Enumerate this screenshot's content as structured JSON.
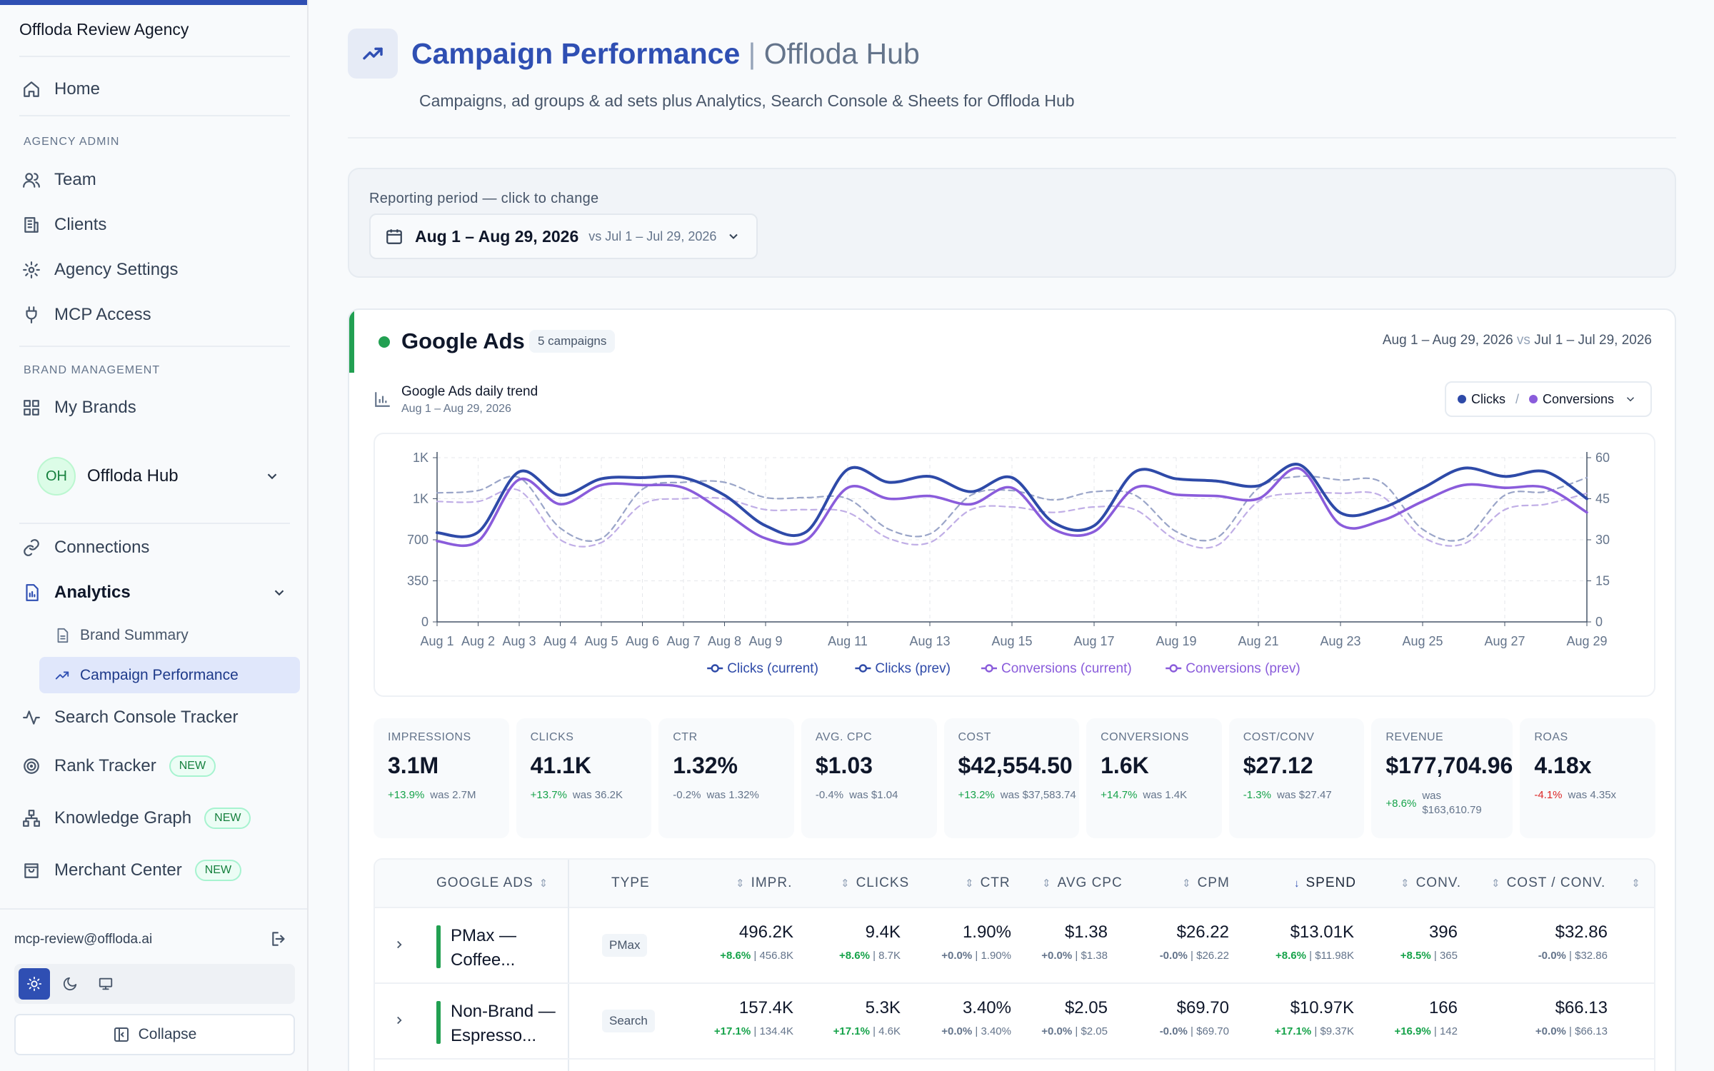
{
  "agency": "Offloda Review Agency",
  "nav": {
    "home": "Home",
    "agency_admin_label": "AGENCY ADMIN",
    "team": "Team",
    "clients": "Clients",
    "agency_settings": "Agency Settings",
    "mcp_access": "MCP Access",
    "brand_management_label": "BRAND MANAGEMENT",
    "my_brands": "My Brands",
    "brand_initials": "OH",
    "brand_name": "Offloda Hub",
    "connections": "Connections",
    "analytics": "Analytics",
    "brand_summary": "Brand Summary",
    "campaign_performance": "Campaign Performance",
    "search_console": "Search Console Tracker",
    "rank_tracker": "Rank Tracker",
    "knowledge_graph": "Knowledge Graph",
    "merchant_center": "Merchant Center",
    "new_badge": "NEW",
    "email": "mcp-review@offloda.ai",
    "collapse": "Collapse"
  },
  "header": {
    "title": "Campaign Performance",
    "separator": "|",
    "hub": "Offloda Hub",
    "subtitle": "Campaigns, ad groups & ad sets plus Analytics, Search Console & Sheets for Offloda Hub"
  },
  "period": {
    "label": "Reporting period — click to change",
    "current": "Aug 1 – Aug 29, 2026",
    "compare": "vs Jul 1 – Jul 29, 2026"
  },
  "google_ads": {
    "title": "Google Ads",
    "count": "5 campaigns",
    "range_current": "Aug 1 – Aug 29, 2026",
    "range_vs": "vs",
    "range_prev": "Jul 1 – Jul 29, 2026",
    "trend_title": "Google Ads daily trend",
    "trend_sub": "Aug 1 – Aug 29, 2026",
    "metric_a": "Clicks",
    "metric_sep": "/",
    "metric_b": "Conversions"
  },
  "colors": {
    "clicks": "#2e4aa8",
    "conversions": "#8a5cdb",
    "clicks_prev": "#9aa5c8",
    "conversions_prev": "#c0aee6",
    "accent": "#2f4fb3",
    "positive": "#16a34a",
    "negative": "#dc2626"
  },
  "chart_data": {
    "type": "line",
    "x": [
      "Aug 1",
      "Aug 2",
      "Aug 3",
      "Aug 4",
      "Aug 5",
      "Aug 6",
      "Aug 7",
      "Aug 8",
      "Aug 9",
      "Aug 10",
      "Aug 11",
      "Aug 12",
      "Aug 13",
      "Aug 14",
      "Aug 15",
      "Aug 16",
      "Aug 17",
      "Aug 18",
      "Aug 19",
      "Aug 20",
      "Aug 21",
      "Aug 22",
      "Aug 23",
      "Aug 24",
      "Aug 25",
      "Aug 26",
      "Aug 27",
      "Aug 28",
      "Aug 29"
    ],
    "x_tick_labels": [
      "Aug 1",
      "Aug 2",
      "Aug 3",
      "Aug 4",
      "Aug 5",
      "Aug 6",
      "Aug 7",
      "Aug 8",
      "Aug 9",
      "Aug 11",
      "Aug 13",
      "Aug 15",
      "Aug 17",
      "Aug 19",
      "Aug 21",
      "Aug 23",
      "Aug 25",
      "Aug 27",
      "Aug 29"
    ],
    "y_left_ticks": [
      "0",
      "350",
      "700",
      "1K",
      "1K"
    ],
    "y_left_tick_values": [
      0,
      350,
      700,
      1050,
      1400
    ],
    "y_right_ticks": [
      "0",
      "15",
      "30",
      "45",
      "60"
    ],
    "y_right_tick_values": [
      0,
      15,
      30,
      45,
      60
    ],
    "ylim_left": [
      0,
      1400
    ],
    "ylim_right": [
      0,
      60
    ],
    "grid": true,
    "legend_position": "bottom",
    "series": [
      {
        "name": "Clicks (current)",
        "axis": "left",
        "dashed": false,
        "values": [
          760,
          765,
          1280,
          1080,
          1220,
          1230,
          1230,
          1080,
          820,
          770,
          1300,
          1190,
          1240,
          1110,
          1230,
          850,
          820,
          1280,
          1220,
          1200,
          1160,
          1340,
          930,
          970,
          1140,
          1310,
          1240,
          1280,
          1050
        ]
      },
      {
        "name": "Clicks (prev)",
        "axis": "left",
        "dashed": true,
        "values": [
          1100,
          1120,
          1230,
          800,
          710,
          1130,
          1190,
          1190,
          1060,
          1060,
          1050,
          790,
          750,
          1080,
          1120,
          1040,
          1110,
          1080,
          770,
          720,
          1140,
          1240,
          1210,
          1190,
          790,
          710,
          1080,
          1110,
          1230
        ]
      },
      {
        "name": "Conversions (current)",
        "axis": "right",
        "dashed": false,
        "values": [
          29.5,
          29.5,
          52,
          43,
          50,
          50,
          49,
          40,
          30.5,
          30,
          49,
          45,
          46,
          43,
          49,
          34,
          33,
          49,
          46.5,
          46,
          45,
          56,
          35.5,
          37,
          44,
          50,
          49,
          49,
          40
        ]
      },
      {
        "name": "Conversions (prev)",
        "axis": "right",
        "dashed": true,
        "values": [
          44,
          44,
          48,
          30,
          29,
          43,
          45,
          45,
          41,
          41,
          40,
          30.5,
          29,
          41,
          42,
          40,
          42,
          41,
          30,
          28,
          44,
          47,
          47,
          46,
          31,
          28.5,
          41,
          43,
          47
        ]
      }
    ]
  },
  "kpis": [
    {
      "label": "IMPRESSIONS",
      "value": "3.1M",
      "delta": "+13.9%",
      "dir": "up",
      "was": "was 2.7M"
    },
    {
      "label": "CLICKS",
      "value": "41.1K",
      "delta": "+13.7%",
      "dir": "up",
      "was": "was 36.2K"
    },
    {
      "label": "CTR",
      "value": "1.32%",
      "delta": "-0.2%",
      "dir": "neutral",
      "was": "was 1.32%"
    },
    {
      "label": "AVG. CPC",
      "value": "$1.03",
      "delta": "-0.4%",
      "dir": "neutral",
      "was": "was $1.04"
    },
    {
      "label": "COST",
      "value": "$42,554.50",
      "delta": "+13.2%",
      "dir": "up",
      "was": "was $37,583.74"
    },
    {
      "label": "CONVERSIONS",
      "value": "1.6K",
      "delta": "+14.7%",
      "dir": "up",
      "was": "was 1.4K"
    },
    {
      "label": "COST/CONV",
      "value": "$27.12",
      "delta": "-1.3%",
      "dir": "up",
      "was": "was $27.47"
    },
    {
      "label": "REVENUE",
      "value": "$177,704.96",
      "delta": "+8.6%",
      "dir": "up",
      "was": "was $163,610.79"
    },
    {
      "label": "ROAS",
      "value": "4.18x",
      "delta": "-4.1%",
      "dir": "down",
      "was": "was 4.35x"
    }
  ],
  "table": {
    "headers": {
      "name": "GOOGLE ADS",
      "type": "TYPE",
      "impr": "IMPR.",
      "clicks": "CLICKS",
      "ctr": "CTR",
      "avg_cpc": "AVG CPC",
      "cpm": "CPM",
      "spend": "SPEND",
      "conv": "CONV.",
      "cost_conv": "COST / CONV."
    },
    "sort_icon": "⇕",
    "sort_active_icon": "↓",
    "rows": [
      {
        "name": "PMax — Coffee...",
        "type": "PMax",
        "impr": {
          "v": "496.2K",
          "d": "+8.6%",
          "dir": "up",
          "p": "456.8K"
        },
        "clicks": {
          "v": "9.4K",
          "d": "+8.6%",
          "dir": "up",
          "p": "8.7K"
        },
        "ctr": {
          "v": "1.90%",
          "d": "+0.0%",
          "dir": "neutral",
          "p": "1.90%"
        },
        "avg_cpc": {
          "v": "$1.38",
          "d": "+0.0%",
          "dir": "neutral",
          "p": "$1.38"
        },
        "cpm": {
          "v": "$26.22",
          "d": "-0.0%",
          "dir": "neutral",
          "p": "$26.22"
        },
        "spend": {
          "v": "$13.01K",
          "d": "+8.6%",
          "dir": "up",
          "p": "$11.98K"
        },
        "conv": {
          "v": "396",
          "d": "+8.5%",
          "dir": "up",
          "p": "365"
        },
        "cost_conv": {
          "v": "$32.86",
          "d": "-0.0%",
          "dir": "neutral",
          "p": "$32.86"
        }
      },
      {
        "name": "Non-Brand — Espresso...",
        "type": "Search",
        "impr": {
          "v": "157.4K",
          "d": "+17.1%",
          "dir": "up",
          "p": "134.4K"
        },
        "clicks": {
          "v": "5.3K",
          "d": "+17.1%",
          "dir": "up",
          "p": "4.6K"
        },
        "ctr": {
          "v": "3.40%",
          "d": "+0.0%",
          "dir": "neutral",
          "p": "3.40%"
        },
        "avg_cpc": {
          "v": "$2.05",
          "d": "+0.0%",
          "dir": "neutral",
          "p": "$2.05"
        },
        "cpm": {
          "v": "$69.70",
          "d": "-0.0%",
          "dir": "neutral",
          "p": "$69.70"
        },
        "spend": {
          "v": "$10.97K",
          "d": "+17.1%",
          "dir": "up",
          "p": "$9.37K"
        },
        "conv": {
          "v": "166",
          "d": "+16.9%",
          "dir": "up",
          "p": "142"
        },
        "cost_conv": {
          "v": "$66.13",
          "d": "+0.0%",
          "dir": "neutral",
          "p": "$66.13"
        }
      }
    ]
  }
}
